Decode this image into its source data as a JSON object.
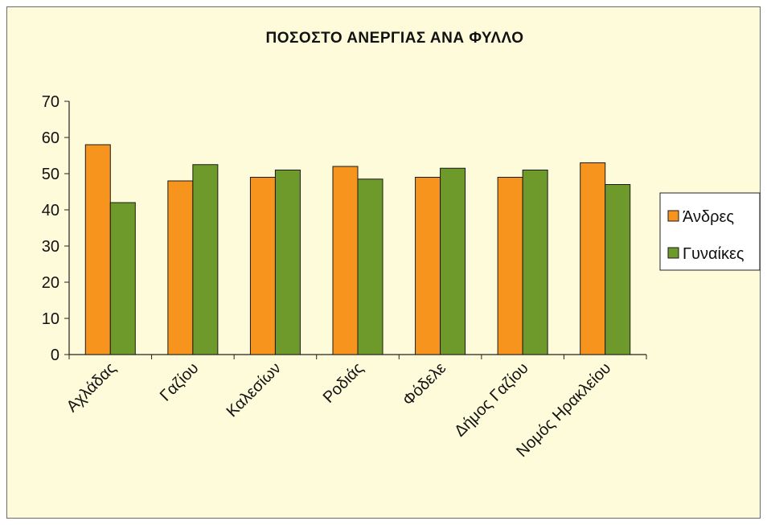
{
  "chart_data": {
    "type": "bar",
    "title": "ΠΟΣΟΣΤΟ ΑΝΕΡΓΙΑΣ ΑΝΑ ΦΥΛΛΟ",
    "xlabel": "",
    "ylabel": "",
    "ylim": [
      0,
      70
    ],
    "yticks": [
      0,
      10,
      20,
      30,
      40,
      50,
      60,
      70
    ],
    "categories": [
      "Αχλάδας",
      "Γαζίου",
      "Καλεσίων",
      "Ροδιάς",
      "Φόδελε",
      "Δήμος Γαζίου",
      "Νομός Ηρακλείου"
    ],
    "series": [
      {
        "name": "Άνδρες",
        "color": "#f7941d",
        "values": [
          58,
          48,
          49,
          52,
          49,
          49,
          53
        ]
      },
      {
        "name": "Γυναίκες",
        "color": "#6e9a2b",
        "values": [
          42,
          52.5,
          51,
          48.5,
          51.5,
          51,
          47
        ]
      }
    ],
    "grid": false,
    "legend": "right"
  }
}
